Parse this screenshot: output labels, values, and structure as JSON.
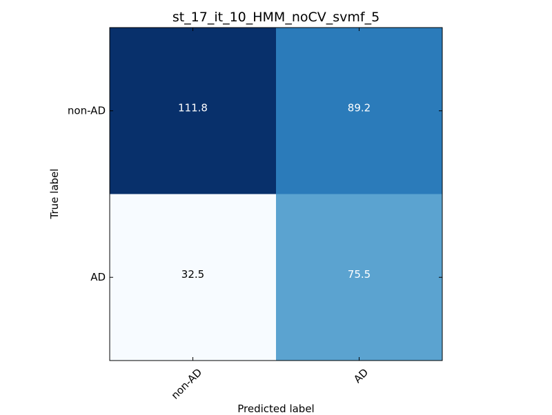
{
  "chart_data": {
    "type": "heatmap",
    "title": "st_17_it_10_HMM_noCV_svmf_5",
    "xlabel": "Predicted label",
    "ylabel": "True label",
    "x_categories": [
      "non-AD",
      "AD"
    ],
    "y_categories": [
      "non-AD",
      "AD"
    ],
    "values": [
      [
        111.8,
        89.2
      ],
      [
        32.5,
        75.5
      ]
    ],
    "value_labels": [
      [
        "111.8",
        "89.2"
      ],
      [
        "32.5",
        "75.5"
      ]
    ],
    "colormap": "Blues",
    "colors": {
      "cells": [
        [
          "#08306b",
          "#2b7bba"
        ],
        [
          "#f7fbff",
          "#5ba3d0"
        ]
      ],
      "text_dark": "#000000",
      "text_light": "#ffffff"
    },
    "grid": false,
    "legend": "none"
  }
}
